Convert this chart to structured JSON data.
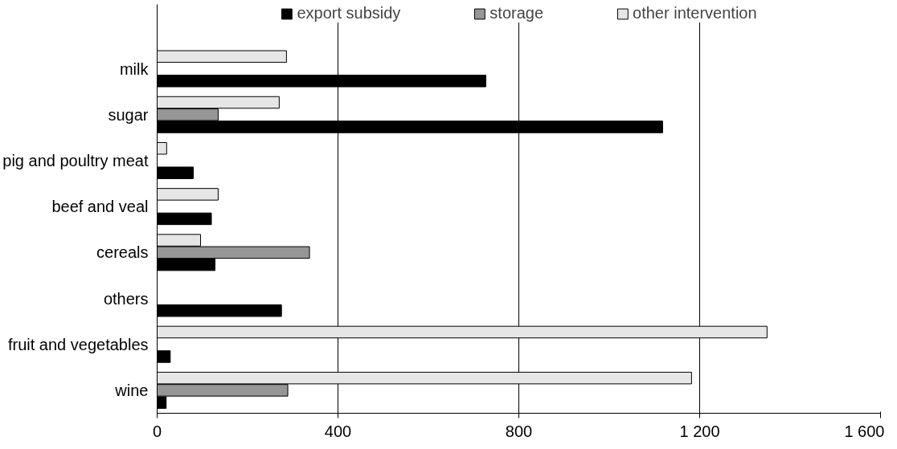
{
  "chart_data": {
    "type": "bar",
    "orientation": "horizontal",
    "categories": [
      "milk",
      "sugar",
      "pig and poultry meat",
      "beef and veal",
      "cereals",
      "others",
      "fruit and vegetables",
      "wine"
    ],
    "series": [
      {
        "name": "export subsidy",
        "color": "#000000",
        "values": [
          727,
          1118,
          80,
          120,
          128,
          275,
          29,
          20
        ]
      },
      {
        "name": "storage",
        "color": "#969696",
        "values": [
          null,
          135,
          null,
          null,
          337,
          null,
          null,
          289
        ]
      },
      {
        "name": "other intervention",
        "color": "#e6e6e6",
        "values": [
          286,
          270,
          21,
          135,
          96,
          null,
          1349,
          1182
        ]
      }
    ],
    "xlim": [
      0,
      1600
    ],
    "xticks": [
      0,
      400,
      800,
      {
        "value": 1200,
        "label": "1 200"
      },
      {
        "value": 1600,
        "label": "1 600"
      }
    ],
    "grid": "x",
    "legend": "top"
  }
}
